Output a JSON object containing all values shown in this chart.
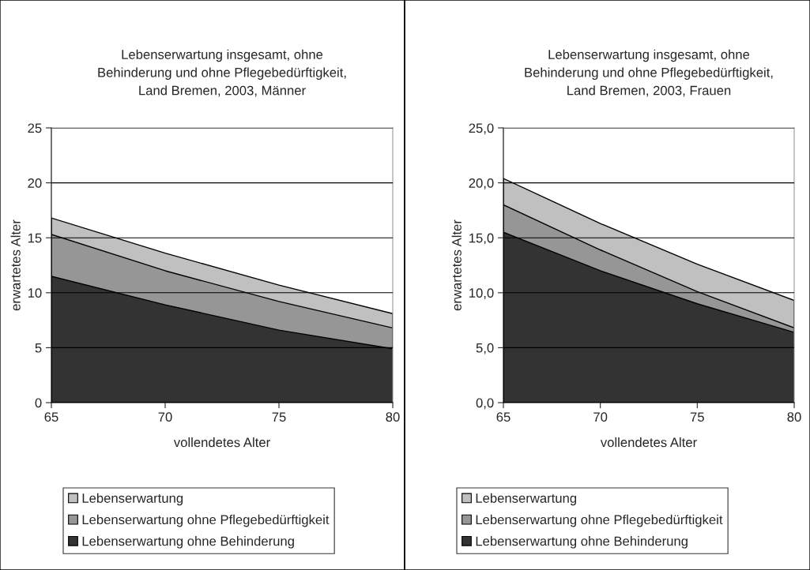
{
  "chart_data": [
    {
      "type": "area",
      "title": "Lebenserwartung insgesamt, ohne\nBehinderung und ohne Pflegebedürftigkeit,\nLand Bremen, 2003, Männer",
      "xlabel": "vollendetes Alter",
      "ylabel": "erwartetes Alter",
      "categories": [
        "65",
        "70",
        "75",
        "80"
      ],
      "series": [
        {
          "name": "Lebenserwartung",
          "color": "#c0c0c0",
          "values": [
            16.8,
            13.6,
            10.7,
            8.1
          ]
        },
        {
          "name": "Lebenserwartung ohne Pflegebedürftigkeit",
          "color": "#969696",
          "values": [
            15.3,
            12.0,
            9.2,
            6.8
          ]
        },
        {
          "name": "Lebenserwartung ohne Behinderung",
          "color": "#333333",
          "values": [
            11.5,
            8.9,
            6.6,
            4.9
          ]
        }
      ],
      "ylim": [
        0,
        25
      ],
      "yticks": [
        0,
        5,
        10,
        15,
        20,
        25
      ],
      "grid": "y",
      "legend": "bottom"
    },
    {
      "type": "area",
      "title": "Lebenserwartung insgesamt, ohne\nBehinderung und ohne Pflegebedürftigkeit,\nLand Bremen, 2003, Frauen",
      "xlabel": "vollendetes Alter",
      "ylabel": "erwartetes Alter",
      "categories": [
        "65",
        "70",
        "75",
        "80"
      ],
      "series": [
        {
          "name": "Lebenserwartung",
          "color": "#c0c0c0",
          "values": [
            20.4,
            16.3,
            12.6,
            9.3
          ]
        },
        {
          "name": "Lebenserwartung ohne Pflegebedürftigkeit",
          "color": "#969696",
          "values": [
            18.0,
            13.9,
            10.1,
            6.8
          ]
        },
        {
          "name": "Lebenserwartung ohne Behinderung",
          "color": "#333333",
          "values": [
            15.5,
            12.0,
            9.0,
            6.4
          ]
        }
      ],
      "ylim": [
        0,
        25
      ],
      "yticks": [
        {
          "value": 0,
          "label": "0,0"
        },
        {
          "value": 5,
          "label": "5,0"
        },
        {
          "value": 10,
          "label": "10,0"
        },
        {
          "value": 15,
          "label": "15,0"
        },
        {
          "value": 20,
          "label": "20,0"
        },
        {
          "value": 25,
          "label": "25,0"
        }
      ],
      "grid": "y",
      "legend": "bottom"
    }
  ]
}
